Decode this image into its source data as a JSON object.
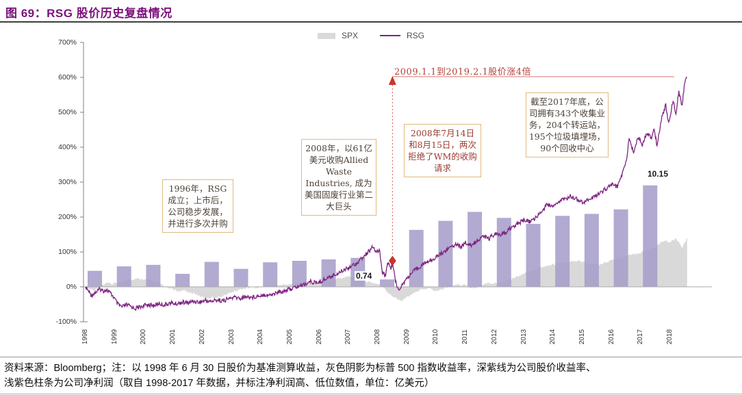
{
  "title": "图 69：RSG 股价历史复盘情况",
  "legend": {
    "items": [
      {
        "label": "SPX"
      },
      {
        "label": "RSG"
      }
    ]
  },
  "colors": {
    "title": "#7c107c",
    "rsg_line": "#7d2381",
    "spx_area": "#d9d9d9",
    "profit_bar": "#a49bc8",
    "red_annotation": "#cc3527",
    "box_border": "#e2b87c"
  },
  "annotations": {
    "founding_box": "1996年，RSG成立；上市后，公司稳步发展，并进行多次并购",
    "allied_box": "2008年，以61亿美元收购Allied Waste Industries, 成为美国固废行业第二大巨头",
    "wm_box": "2008年7月14日和8月15日，两次拒绝了WM的收购请求",
    "assets_box": "截至2017年底，公司拥有343个收集业务，204个转运站，195个垃圾填埋场，90个回收中心",
    "gain_note": "2009.1.1到2019.2.1股价涨4倍",
    "profit_low_label": "0.74",
    "profit_high_label": "10.15"
  },
  "footnote": {
    "line1": "资料来源：Bloomberg；注：以 1998 年 6 月 30 日股价为基准测算收益，灰色阴影为标普 500 指数收益率，深紫线为公司股价收益率、",
    "line2": "浅紫色柱条为公司净利润（取自 1998-2017 年数据，并标注净利润高、低位数值，单位：亿美元）"
  },
  "chart_data": {
    "type": "combo",
    "title": "RSG 股价历史复盘情况",
    "ylim": [
      -100,
      700
    ],
    "yticks": [
      "700%",
      "600%",
      "500%",
      "400%",
      "300%",
      "200%",
      "100%",
      "0%",
      "-100%"
    ],
    "xticks": [
      "1998",
      "1999",
      "2000",
      "2001",
      "2002",
      "2003",
      "2004",
      "2005",
      "2006",
      "2007",
      "2008",
      "2009",
      "2010",
      "2011",
      "2012",
      "2013",
      "2014",
      "2015",
      "2016",
      "2017",
      "2018"
    ],
    "grid": false,
    "legend_position": "top-center",
    "series": [
      {
        "name": "SPX",
        "type": "area",
        "color": "#d9d9d9",
        "unit": "percent_return",
        "points": [
          [
            1998.5,
            0
          ],
          [
            1998.65,
            -6
          ],
          [
            1998.8,
            -10
          ],
          [
            1998.95,
            2
          ],
          [
            1999.1,
            7
          ],
          [
            1999.25,
            11
          ],
          [
            1999.4,
            8
          ],
          [
            1999.55,
            12
          ],
          [
            1999.7,
            15
          ],
          [
            1999.85,
            17
          ],
          [
            2000.0,
            19
          ],
          [
            2000.15,
            21
          ],
          [
            2000.3,
            23
          ],
          [
            2000.45,
            19
          ],
          [
            2000.6,
            21
          ],
          [
            2000.75,
            18
          ],
          [
            2000.9,
            13
          ],
          [
            2001.05,
            9
          ],
          [
            2001.2,
            3
          ],
          [
            2001.35,
            -3
          ],
          [
            2001.5,
            -8
          ],
          [
            2001.65,
            -13
          ],
          [
            2001.8,
            -10
          ],
          [
            2001.95,
            -13
          ],
          [
            2002.1,
            -16
          ],
          [
            2002.25,
            -21
          ],
          [
            2002.4,
            -26
          ],
          [
            2002.55,
            -30
          ],
          [
            2002.7,
            -33
          ],
          [
            2002.85,
            -29
          ],
          [
            2003.0,
            -31
          ],
          [
            2003.15,
            -27
          ],
          [
            2003.3,
            -23
          ],
          [
            2003.45,
            -17
          ],
          [
            2003.6,
            -12
          ],
          [
            2003.75,
            -8
          ],
          [
            2003.9,
            -5
          ],
          [
            2004.05,
            -3
          ],
          [
            2004.2,
            -1
          ],
          [
            2004.35,
            -3
          ],
          [
            2004.5,
            -1
          ],
          [
            2004.65,
            1
          ],
          [
            2004.8,
            4
          ],
          [
            2004.95,
            6
          ],
          [
            2005.1,
            4
          ],
          [
            2005.25,
            6
          ],
          [
            2005.4,
            7
          ],
          [
            2005.55,
            8
          ],
          [
            2005.7,
            9
          ],
          [
            2005.85,
            10
          ],
          [
            2006.0,
            12
          ],
          [
            2006.15,
            11
          ],
          [
            2006.3,
            10
          ],
          [
            2006.45,
            13
          ],
          [
            2006.6,
            15
          ],
          [
            2006.75,
            18
          ],
          [
            2006.9,
            20
          ],
          [
            2007.05,
            22
          ],
          [
            2007.2,
            25
          ],
          [
            2007.35,
            27
          ],
          [
            2007.5,
            30
          ],
          [
            2007.65,
            28
          ],
          [
            2007.8,
            26
          ],
          [
            2007.95,
            22
          ],
          [
            2008.1,
            17
          ],
          [
            2008.25,
            14
          ],
          [
            2008.4,
            11
          ],
          [
            2008.55,
            8
          ],
          [
            2008.7,
            0
          ],
          [
            2008.85,
            -18
          ],
          [
            2009.0,
            -27
          ],
          [
            2009.15,
            -33
          ],
          [
            2009.3,
            -41
          ],
          [
            2009.45,
            -32
          ],
          [
            2009.6,
            -23
          ],
          [
            2009.75,
            -16
          ],
          [
            2009.9,
            -11
          ],
          [
            2010.05,
            -7
          ],
          [
            2010.2,
            -4
          ],
          [
            2010.35,
            -8
          ],
          [
            2010.5,
            -12
          ],
          [
            2010.65,
            -8
          ],
          [
            2010.8,
            -3
          ],
          [
            2010.95,
            1
          ],
          [
            2011.1,
            4
          ],
          [
            2011.25,
            7
          ],
          [
            2011.4,
            6
          ],
          [
            2011.55,
            3
          ],
          [
            2011.7,
            -4
          ],
          [
            2011.85,
            -1
          ],
          [
            2012.0,
            4
          ],
          [
            2012.15,
            8
          ],
          [
            2012.3,
            11
          ],
          [
            2012.45,
            9
          ],
          [
            2012.6,
            12
          ],
          [
            2012.75,
            14
          ],
          [
            2012.9,
            17
          ],
          [
            2013.05,
            22
          ],
          [
            2013.2,
            28
          ],
          [
            2013.35,
            33
          ],
          [
            2013.5,
            39
          ],
          [
            2013.65,
            44
          ],
          [
            2013.8,
            48
          ],
          [
            2013.95,
            53
          ],
          [
            2014.1,
            56
          ],
          [
            2014.25,
            59
          ],
          [
            2014.4,
            62
          ],
          [
            2014.55,
            65
          ],
          [
            2014.7,
            67
          ],
          [
            2014.85,
            69
          ],
          [
            2015.0,
            71
          ],
          [
            2015.15,
            73
          ],
          [
            2015.3,
            75
          ],
          [
            2015.45,
            73
          ],
          [
            2015.6,
            70
          ],
          [
            2015.75,
            64
          ],
          [
            2015.9,
            67
          ],
          [
            2016.05,
            63
          ],
          [
            2016.2,
            68
          ],
          [
            2016.35,
            73
          ],
          [
            2016.5,
            77
          ],
          [
            2016.65,
            80
          ],
          [
            2016.8,
            83
          ],
          [
            2016.95,
            86
          ],
          [
            2017.1,
            89
          ],
          [
            2017.25,
            93
          ],
          [
            2017.4,
            97
          ],
          [
            2017.55,
            101
          ],
          [
            2017.7,
            105
          ],
          [
            2017.85,
            109
          ],
          [
            2018.0,
            116
          ],
          [
            2018.15,
            126
          ],
          [
            2018.3,
            134
          ],
          [
            2018.45,
            127
          ],
          [
            2018.6,
            133
          ],
          [
            2018.7,
            139
          ],
          [
            2018.8,
            128
          ],
          [
            2018.9,
            112
          ],
          [
            2019.0,
            126
          ],
          [
            2019.08,
            140
          ]
        ]
      },
      {
        "name": "RSG",
        "type": "line",
        "color": "#7d2381",
        "unit": "percent_return",
        "points": [
          [
            1998.5,
            0
          ],
          [
            1998.58,
            -10
          ],
          [
            1998.7,
            -24
          ],
          [
            1998.8,
            -18
          ],
          [
            1998.9,
            -12
          ],
          [
            1999.0,
            -6
          ],
          [
            1999.1,
            -12
          ],
          [
            1999.2,
            -8
          ],
          [
            1999.3,
            -14
          ],
          [
            1999.45,
            -28
          ],
          [
            1999.6,
            -50
          ],
          [
            1999.75,
            -58
          ],
          [
            1999.9,
            -52
          ],
          [
            2000.05,
            -56
          ],
          [
            2000.2,
            -62
          ],
          [
            2000.35,
            -58
          ],
          [
            2000.5,
            -54
          ],
          [
            2000.65,
            -50
          ],
          [
            2000.8,
            -55
          ],
          [
            2001.0,
            -48
          ],
          [
            2001.2,
            -52
          ],
          [
            2001.4,
            -46
          ],
          [
            2001.6,
            -49
          ],
          [
            2001.8,
            -44
          ],
          [
            2002.0,
            -46
          ],
          [
            2002.2,
            -41
          ],
          [
            2002.4,
            -44
          ],
          [
            2002.6,
            -39
          ],
          [
            2002.8,
            -42
          ],
          [
            2003.0,
            -37
          ],
          [
            2003.2,
            -40
          ],
          [
            2003.4,
            -34
          ],
          [
            2003.6,
            -30
          ],
          [
            2003.8,
            -33
          ],
          [
            2004.0,
            -28
          ],
          [
            2004.2,
            -30
          ],
          [
            2004.4,
            -26
          ],
          [
            2004.6,
            -22
          ],
          [
            2004.8,
            -24
          ],
          [
            2005.0,
            -18
          ],
          [
            2005.2,
            -13
          ],
          [
            2005.4,
            -9
          ],
          [
            2005.6,
            -4
          ],
          [
            2005.8,
            2
          ],
          [
            2006.0,
            8
          ],
          [
            2006.2,
            15
          ],
          [
            2006.4,
            11
          ],
          [
            2006.6,
            18
          ],
          [
            2006.8,
            26
          ],
          [
            2007.0,
            34
          ],
          [
            2007.2,
            42
          ],
          [
            2007.4,
            52
          ],
          [
            2007.6,
            60
          ],
          [
            2007.8,
            70
          ],
          [
            2008.0,
            85
          ],
          [
            2008.15,
            98
          ],
          [
            2008.3,
            112
          ],
          [
            2008.45,
            100
          ],
          [
            2008.55,
            108
          ],
          [
            2008.65,
            45
          ],
          [
            2008.75,
            30
          ],
          [
            2008.85,
            70
          ],
          [
            2008.95,
            52
          ],
          [
            2009.0,
            65
          ],
          [
            2009.1,
            20
          ],
          [
            2009.2,
            -8
          ],
          [
            2009.35,
            8
          ],
          [
            2009.5,
            25
          ],
          [
            2009.65,
            38
          ],
          [
            2009.8,
            50
          ],
          [
            2010.0,
            62
          ],
          [
            2010.2,
            72
          ],
          [
            2010.4,
            80
          ],
          [
            2010.6,
            92
          ],
          [
            2010.8,
            102
          ],
          [
            2011.0,
            115
          ],
          [
            2011.2,
            124
          ],
          [
            2011.35,
            115
          ],
          [
            2011.5,
            126
          ],
          [
            2011.7,
            118
          ],
          [
            2011.9,
            132
          ],
          [
            2012.1,
            146
          ],
          [
            2012.3,
            138
          ],
          [
            2012.5,
            152
          ],
          [
            2012.7,
            146
          ],
          [
            2012.9,
            158
          ],
          [
            2013.1,
            172
          ],
          [
            2013.3,
            182
          ],
          [
            2013.5,
            190
          ],
          [
            2013.7,
            186
          ],
          [
            2013.9,
            198
          ],
          [
            2014.1,
            214
          ],
          [
            2014.3,
            236
          ],
          [
            2014.5,
            228
          ],
          [
            2014.7,
            244
          ],
          [
            2014.9,
            252
          ],
          [
            2015.1,
            260
          ],
          [
            2015.3,
            252
          ],
          [
            2015.5,
            242
          ],
          [
            2015.7,
            250
          ],
          [
            2015.9,
            258
          ],
          [
            2016.1,
            268
          ],
          [
            2016.3,
            280
          ],
          [
            2016.5,
            294
          ],
          [
            2016.7,
            286
          ],
          [
            2016.85,
            320
          ],
          [
            2017.0,
            360
          ],
          [
            2017.1,
            425
          ],
          [
            2017.25,
            385
          ],
          [
            2017.4,
            430
          ],
          [
            2017.55,
            405
          ],
          [
            2017.7,
            442
          ],
          [
            2017.85,
            425
          ],
          [
            2017.95,
            455
          ],
          [
            2018.05,
            405
          ],
          [
            2018.2,
            480
          ],
          [
            2018.35,
            522
          ],
          [
            2018.45,
            468
          ],
          [
            2018.6,
            535
          ],
          [
            2018.7,
            498
          ],
          [
            2018.8,
            560
          ],
          [
            2018.9,
            515
          ],
          [
            2019.0,
            585
          ],
          [
            2019.08,
            600
          ]
        ],
        "marker_point": {
          "year": 2009.0,
          "note": "2009.1.1"
        }
      },
      {
        "name": "公司净利润",
        "type": "bar",
        "color": "#a49bc8",
        "unit": "亿美元",
        "categories": [
          1998,
          1999,
          2000,
          2001,
          2002,
          2003,
          2004,
          2005,
          2006,
          2007,
          2008,
          2009,
          2010,
          2011,
          2012,
          2013,
          2014,
          2015,
          2016,
          2017
        ],
        "values": [
          1.6,
          2.05,
          2.2,
          1.3,
          2.5,
          1.8,
          2.45,
          2.6,
          2.75,
          2.9,
          0.74,
          5.7,
          6.6,
          7.5,
          6.9,
          6.3,
          7.1,
          7.3,
          7.75,
          10.15
        ],
        "data_labels": {
          "2008": "0.74",
          "2017": "10.15"
        }
      }
    ]
  }
}
